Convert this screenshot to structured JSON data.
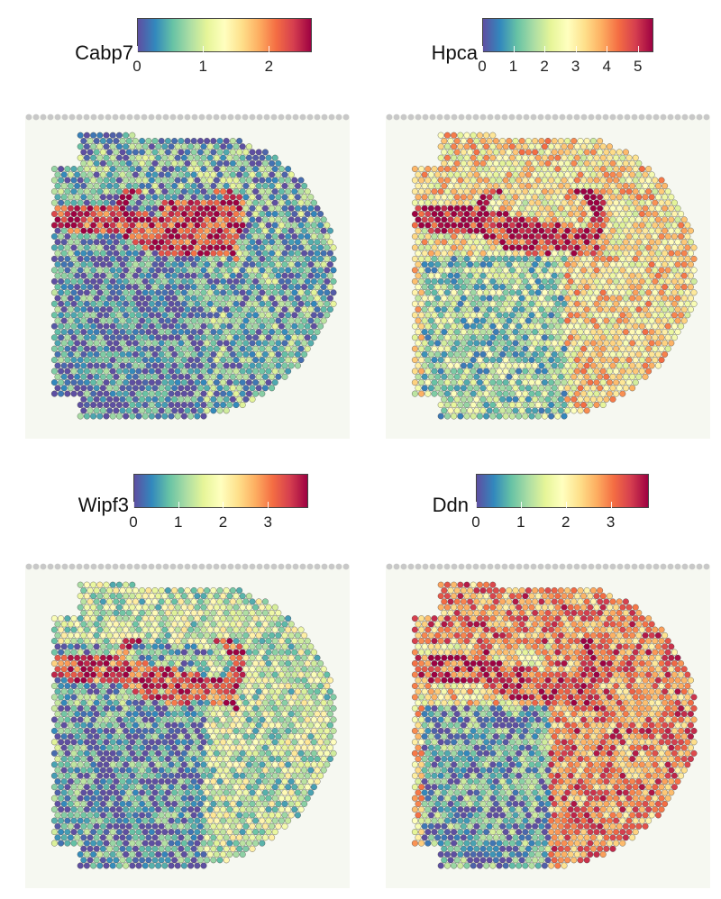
{
  "palette": [
    "#5e4fa2",
    "#3288bd",
    "#66c2a5",
    "#abdda4",
    "#e6f598",
    "#ffffbf",
    "#fee08b",
    "#fdae61",
    "#f46d43",
    "#d53e4f",
    "#9e0142"
  ],
  "chart_data": [
    {
      "type": "heatmap",
      "gene": "Cabp7",
      "colorbar": {
        "min": 0,
        "max": 2.65,
        "ticks": [
          0,
          1,
          2
        ],
        "tick_labels": [
          "0",
          "1",
          "2"
        ]
      },
      "pattern": "hippocampus-cluster",
      "levels": {
        "background": 0.3,
        "hippocampus": 2.4,
        "cortex": 0.5,
        "thalamus": 0.25
      }
    },
    {
      "type": "heatmap",
      "gene": "Hpca",
      "colorbar": {
        "min": 0,
        "max": 5.5,
        "ticks": [
          0,
          1,
          2,
          3,
          4,
          5
        ],
        "tick_labels": [
          "0",
          "1",
          "2",
          "3",
          "4",
          "5"
        ]
      },
      "pattern": "hippocampus-arc",
      "levels": {
        "background": 3.0,
        "hippocampus": 5.2,
        "cortex": 3.2,
        "thalamus": 1.6
      }
    },
    {
      "type": "heatmap",
      "gene": "Wipf3",
      "colorbar": {
        "min": 0,
        "max": 3.9,
        "ticks": [
          0,
          1,
          2,
          3
        ],
        "tick_labels": [
          "0",
          "1",
          "2",
          "3"
        ]
      },
      "pattern": "hippocampus-band",
      "levels": {
        "background": 0.7,
        "hippocampus": 3.3,
        "cortex": 1.4,
        "thalamus": 0.5
      }
    },
    {
      "type": "heatmap",
      "gene": "Ddn",
      "colorbar": {
        "min": 0,
        "max": 3.85,
        "ticks": [
          0,
          1,
          2,
          3
        ],
        "tick_labels": [
          "0",
          "1",
          "2",
          "3"
        ]
      },
      "pattern": "cortex-dominant",
      "levels": {
        "background": 2.2,
        "hippocampus": 3.4,
        "cortex": 2.9,
        "thalamus": 0.6
      }
    }
  ]
}
